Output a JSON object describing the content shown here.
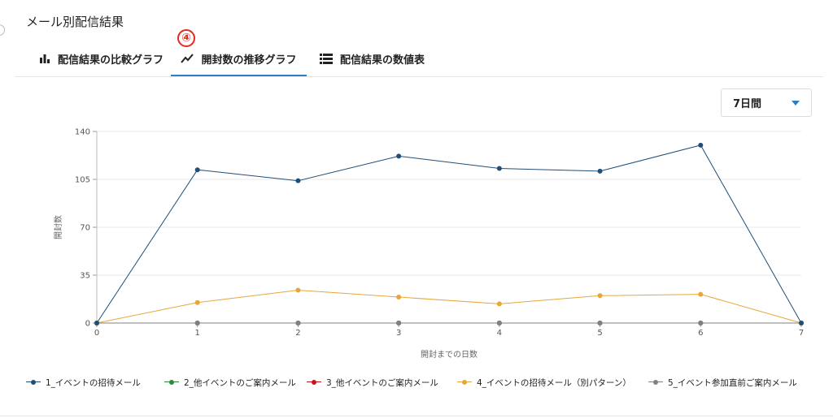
{
  "header": {
    "title": "メール別配信結果"
  },
  "tabs": [
    {
      "label": "配信結果の比較グラフ",
      "icon": "bar-chart-icon",
      "active": false
    },
    {
      "label": "開封数の推移グラフ",
      "icon": "trend-line-icon",
      "active": true
    },
    {
      "label": "配信結果の数値表",
      "icon": "list-table-icon",
      "active": false
    }
  ],
  "annotation": {
    "step_marker": "④"
  },
  "period_select": {
    "value": "7日間"
  },
  "chart_data": {
    "type": "line",
    "title": "",
    "xlabel": "開封までの日数",
    "ylabel": "開封数",
    "x": [
      0,
      1,
      2,
      3,
      4,
      5,
      6,
      7
    ],
    "xlim": [
      0,
      7
    ],
    "ylim": [
      0,
      140
    ],
    "yticks": [
      0,
      35,
      70,
      105,
      140
    ],
    "grid": true,
    "legend_position": "bottom",
    "series": [
      {
        "name": "1_イベントの招待メール",
        "color": "#1f4e79",
        "values": [
          0,
          112,
          104,
          122,
          113,
          111,
          130,
          0
        ]
      },
      {
        "name": "2_他イベントのご案内メール",
        "color": "#2e8b3e",
        "values": [
          0,
          0,
          0,
          0,
          0,
          0,
          0,
          0
        ]
      },
      {
        "name": "3_他イベントのご案内メール",
        "color": "#c0161c",
        "values": [
          0,
          0,
          0,
          0,
          0,
          0,
          0,
          0
        ]
      },
      {
        "name": "4_イベントの招待メール（別パターン）",
        "color": "#e6a63b",
        "values": [
          0,
          15,
          24,
          19,
          14,
          20,
          21,
          0
        ]
      },
      {
        "name": "5_イベント参加直前ご案内メール",
        "color": "#808080",
        "values": [
          0,
          0,
          0,
          0,
          0,
          0,
          0,
          0
        ]
      }
    ]
  }
}
